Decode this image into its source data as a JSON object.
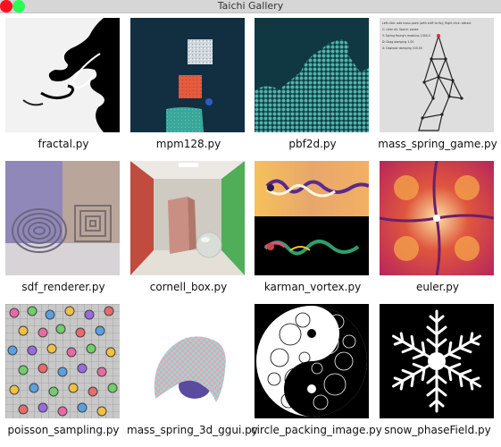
{
  "window": {
    "title": "Taichi Gallery"
  },
  "gallery": {
    "items": [
      {
        "label": "fractal.py"
      },
      {
        "label": "mpm128.py"
      },
      {
        "label": "pbf2d.py"
      },
      {
        "label": "mass_spring_game.py"
      },
      {
        "label": "sdf_renderer.py"
      },
      {
        "label": "cornell_box.py"
      },
      {
        "label": "karman_vortex.py"
      },
      {
        "label": "euler.py"
      },
      {
        "label": "poisson_sampling.py"
      },
      {
        "label": "mass_spring_3d_ggui.py"
      },
      {
        "label": "circle_packing_image.py"
      },
      {
        "label": "snow_phaseField.py"
      }
    ]
  },
  "mass_spring_game": {
    "hint_lines": [
      "Left click: add mass point (with shift to fix); Right click: attract",
      "C: clear all; Space: pause",
      "Y: Spring Young's modulus 1000.0",
      "D: Drag damping 1.00",
      "X: Dashpot damping 100.00"
    ]
  }
}
